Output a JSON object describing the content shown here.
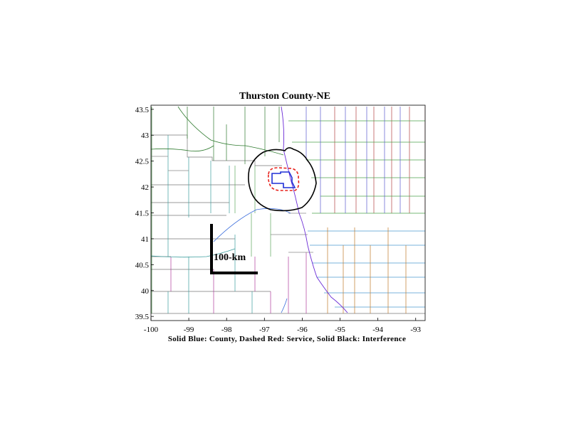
{
  "title": "Thurston County-NE",
  "caption": "Solid Blue: County, Dashed Red: Service, Solid Black: Interference",
  "scale_bar": {
    "label": "100-km"
  },
  "x_axis": {
    "range": [
      -100,
      -92.75
    ],
    "ticks": [
      -100,
      -99,
      -98,
      -97,
      -96,
      -95,
      -94,
      -93
    ]
  },
  "y_axis": {
    "range": [
      39.42,
      43.58
    ],
    "ticks": [
      39.5,
      40,
      40.5,
      41,
      41.5,
      42,
      42.5,
      43,
      43.5
    ]
  },
  "legend_colors": {
    "county": "#1f2fd6",
    "service": "#e8221c",
    "interference": "#000000"
  }
}
